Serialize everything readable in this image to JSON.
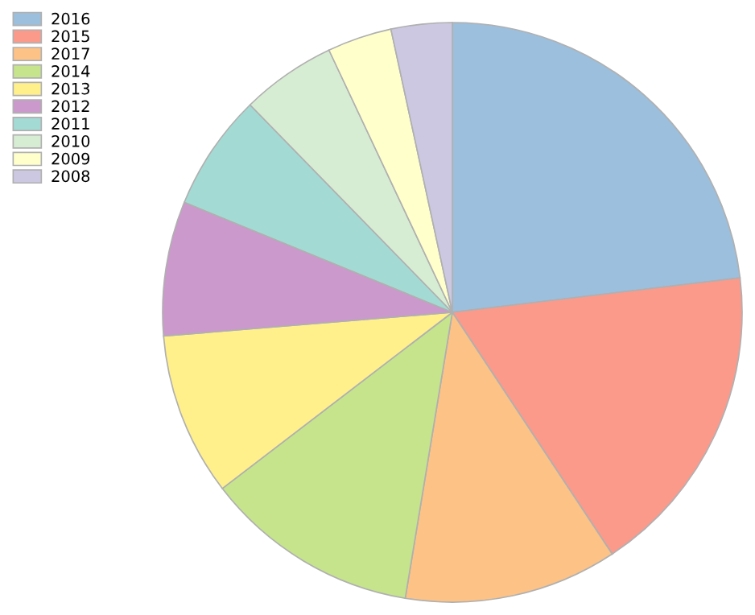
{
  "chart_data": {
    "type": "pie",
    "categories": [
      "2016",
      "2015",
      "2017",
      "2014",
      "2013",
      "2012",
      "2011",
      "2010",
      "2009",
      "2008"
    ],
    "values": [
      23.1,
      17.6,
      11.9,
      12.0,
      9.1,
      7.5,
      6.5,
      5.3,
      3.6,
      3.4
    ],
    "colors": [
      "#9bbfdc",
      "#fb9a8b",
      "#fdc286",
      "#c5e48b",
      "#fff08c",
      "#cb99cb",
      "#a3dbd4",
      "#d7edd3",
      "#ffffcc",
      "#ccc8e2"
    ],
    "legend": "top left"
  }
}
